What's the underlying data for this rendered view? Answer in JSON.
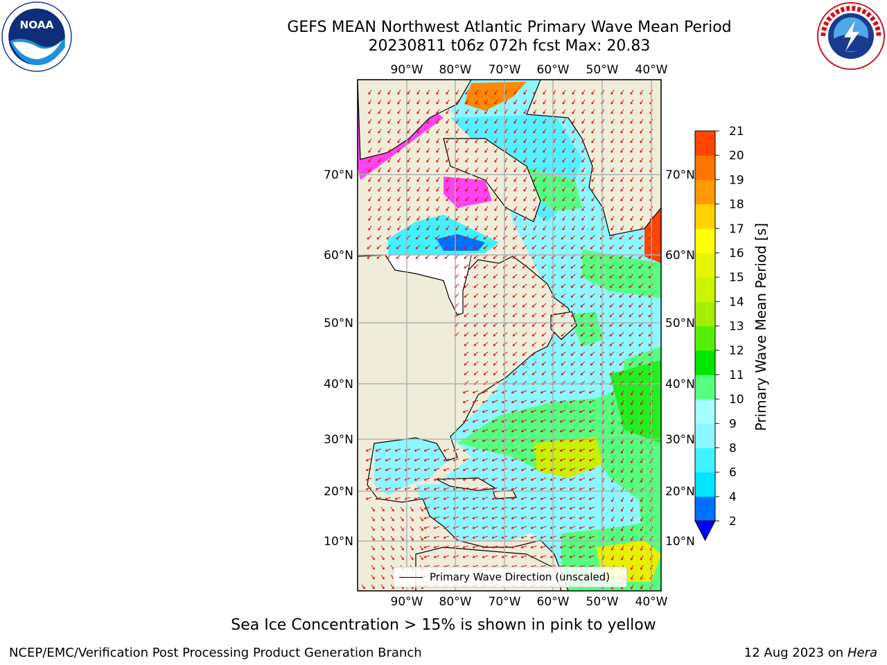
{
  "header": {
    "title_line1": "GEFS MEAN Northwest Atlantic Primary Wave Mean Period",
    "title_line2": "20230811 t06z 072h fcst   Max: 20.83"
  },
  "logos": {
    "left": {
      "icon": "noaa-logo",
      "text": "NOAA"
    },
    "right": {
      "icon": "nws-logo",
      "text": "NATIONAL WEATHER SERVICE"
    }
  },
  "map": {
    "lon_labels": [
      "90°W",
      "80°W",
      "70°W",
      "60°W",
      "50°W",
      "40°W"
    ],
    "lat_labels": [
      "70°N",
      "60°N",
      "50°N",
      "40°N",
      "30°N",
      "20°N",
      "10°N"
    ],
    "legend_label": "Primary Wave Direction (unscaled)",
    "colors": {
      "land": "#efedd9",
      "arrow": "#dd1111",
      "grid": "#b0b0b0"
    }
  },
  "colorbar": {
    "label": "Primary Wave Mean Period [s]",
    "ticks": [
      "2",
      "4",
      "6",
      "8",
      "9",
      "10",
      "11",
      "12",
      "13",
      "14",
      "15",
      "16",
      "17",
      "18",
      "19",
      "20",
      "21"
    ],
    "colors": [
      "#0070ff",
      "#00e5ff",
      "#40f2ff",
      "#8cf7ff",
      "#a6ffff",
      "#55ff7f",
      "#00e600",
      "#55f000",
      "#a6ee00",
      "#ccf500",
      "#e6f500",
      "#ffff00",
      "#ffd200",
      "#ff9900",
      "#ff7300",
      "#ff4500",
      "#ff1e00"
    ],
    "underflow_color": "#0000ff"
  },
  "footer": {
    "caption": "Sea Ice Concentration > 15% is shown in pink to yellow",
    "left": "NCEP/EMC/Verification Post Processing Product Generation Branch",
    "right_date": "12 Aug 2023 on",
    "right_host": "Hera"
  }
}
